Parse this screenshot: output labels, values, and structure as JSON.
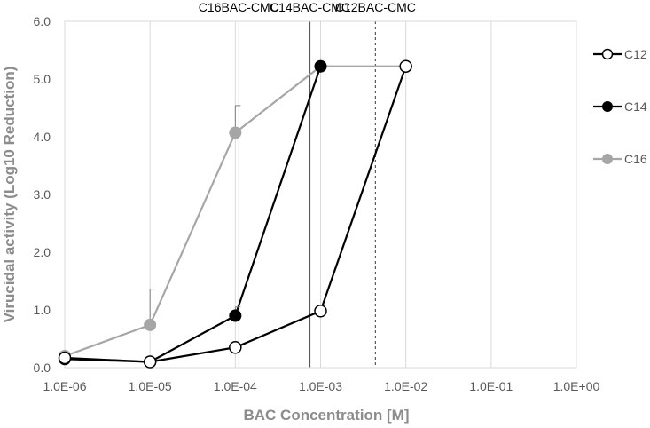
{
  "chart_data": {
    "type": "scatter",
    "title": "",
    "xlabel": "BAC Concentration [M]",
    "ylabel": "Virucidal activity (Log10 Reduction)",
    "xscale": "log",
    "xlim": [
      1e-06,
      1
    ],
    "ylim": [
      0,
      6
    ],
    "grid": "vertical gridlines at each decade",
    "x_ticks": [
      {
        "value": 1e-06,
        "label": "1.0E-06"
      },
      {
        "value": 1e-05,
        "label": "1.0E-05"
      },
      {
        "value": 0.0001,
        "label": "1.0E-04"
      },
      {
        "value": 0.001,
        "label": "1.0E-03"
      },
      {
        "value": 0.01,
        "label": "1.0E-02"
      },
      {
        "value": 0.1,
        "label": "1.0E-01"
      },
      {
        "value": 1,
        "label": "1.0E+00"
      }
    ],
    "y_ticks": [
      {
        "value": 0,
        "label": "0.0"
      },
      {
        "value": 1,
        "label": "1.0"
      },
      {
        "value": 2,
        "label": "2.0"
      },
      {
        "value": 3,
        "label": "3.0"
      },
      {
        "value": 4,
        "label": "4.0"
      },
      {
        "value": 5,
        "label": "5.0"
      },
      {
        "value": 6,
        "label": "6.0"
      }
    ],
    "legend_position": "right",
    "series": [
      {
        "name": "C12",
        "color": "#000000",
        "marker": "open-circle",
        "x": [
          1e-06,
          1e-05,
          0.0001,
          0.001,
          0.01
        ],
        "y": [
          0.17,
          0.1,
          0.35,
          0.98,
          5.22
        ]
      },
      {
        "name": "C14",
        "color": "#000000",
        "marker": "filled-circle",
        "x": [
          1e-06,
          1e-05,
          0.0001,
          0.001
        ],
        "y": [
          0.15,
          0.1,
          0.9,
          5.22
        ],
        "error_plus": [
          0,
          0,
          0.15,
          0
        ]
      },
      {
        "name": "C16",
        "color": "#a6a6a6",
        "marker": "filled-circle",
        "x": [
          1e-06,
          1e-05,
          0.0001,
          0.001,
          0.01
        ],
        "y": [
          0.2,
          0.74,
          4.07,
          5.22,
          5.22
        ],
        "error_plus": [
          0,
          0.62,
          0.47,
          0,
          0
        ]
      }
    ],
    "reference_lines": [
      {
        "label": "C16BAC-CMC",
        "x": 0.00011,
        "style": "solid",
        "color": "#d9d9d9"
      },
      {
        "label": "C14BAC-CMC",
        "x": 0.00075,
        "style": "solid",
        "color": "#595959"
      },
      {
        "label": "C12BAC-CMC",
        "x": 0.0044,
        "style": "dashed",
        "color": "#595959"
      }
    ]
  }
}
